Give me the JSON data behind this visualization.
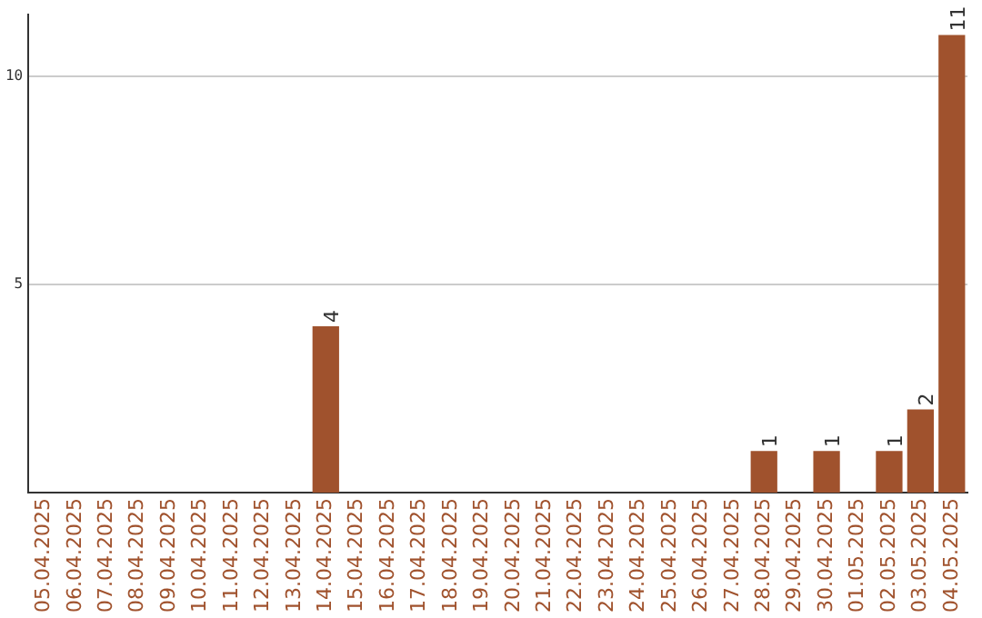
{
  "chart_data": {
    "type": "bar",
    "categories": [
      "05.04.2025",
      "06.04.2025",
      "07.04.2025",
      "08.04.2025",
      "09.04.2025",
      "10.04.2025",
      "11.04.2025",
      "12.04.2025",
      "13.04.2025",
      "14.04.2025",
      "15.04.2025",
      "16.04.2025",
      "17.04.2025",
      "18.04.2025",
      "19.04.2025",
      "20.04.2025",
      "21.04.2025",
      "22.04.2025",
      "23.04.2025",
      "24.04.2025",
      "25.04.2025",
      "26.04.2025",
      "27.04.2025",
      "28.04.2025",
      "29.04.2025",
      "30.04.2025",
      "01.05.2025",
      "02.05.2025",
      "03.05.2025",
      "04.05.2025"
    ],
    "values": [
      0,
      0,
      0,
      0,
      0,
      0,
      0,
      0,
      0,
      4,
      0,
      0,
      0,
      0,
      0,
      0,
      0,
      0,
      0,
      0,
      0,
      0,
      0,
      1,
      0,
      1,
      0,
      1,
      2,
      11
    ],
    "value_labels": [
      null,
      null,
      null,
      null,
      null,
      null,
      null,
      null,
      null,
      "4",
      null,
      null,
      null,
      null,
      null,
      null,
      null,
      null,
      null,
      null,
      null,
      null,
      null,
      "1",
      null,
      "1",
      null,
      "1",
      "2",
      "11"
    ],
    "color": "#a0522d",
    "ylim": [
      0,
      11.5
    ],
    "yticks": [
      5,
      10
    ],
    "grid": "y",
    "legend": false
  }
}
